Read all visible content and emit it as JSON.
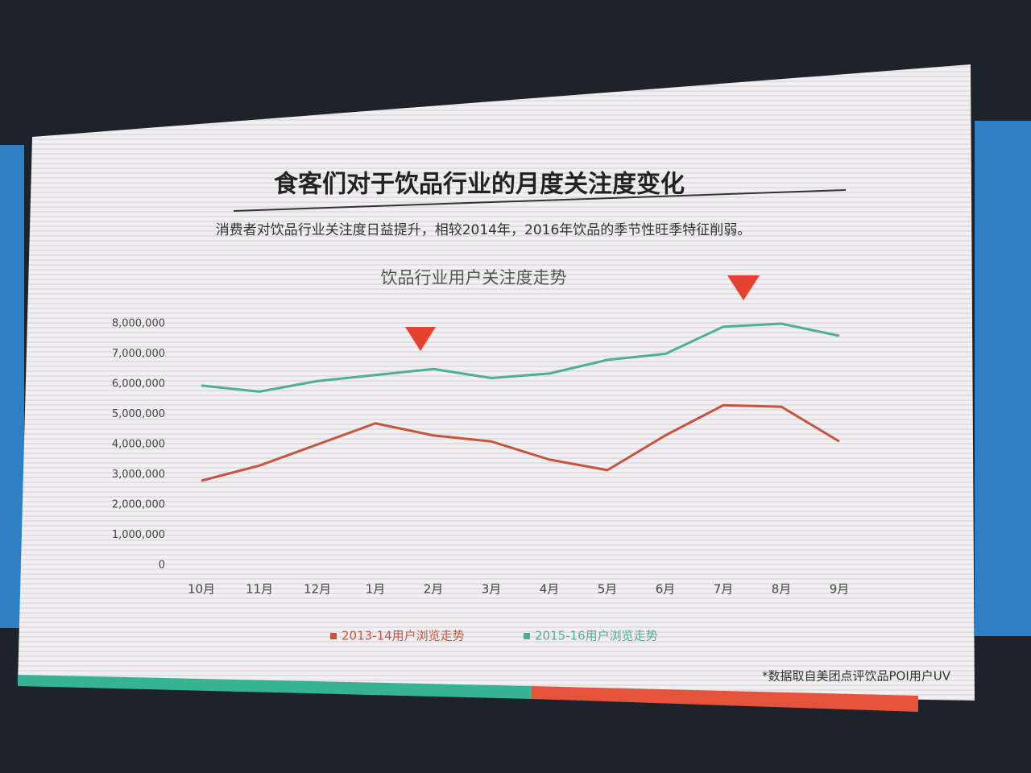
{
  "chart_data": {
    "type": "line",
    "heading": "食客们对于饮品行业的月度关注度变化",
    "subheading": "消费者对饮品行业关注度日益提升，相较2014年，2016年饮品的季节性旺季特征削弱。",
    "title": "饮品行业用户关注度走势",
    "footnote": "*数据取自美团点评饮品POI用户UV",
    "categories": [
      "10月",
      "11月",
      "12月",
      "1月",
      "2月",
      "3月",
      "4月",
      "5月",
      "6月",
      "7月",
      "8月",
      "9月"
    ],
    "series": [
      {
        "name": "2013-14用户浏览走势",
        "color": "#c8543f",
        "values": [
          2800000,
          3300000,
          4000000,
          4700000,
          4300000,
          4100000,
          3500000,
          3150000,
          4300000,
          5300000,
          5250000,
          4100000
        ]
      },
      {
        "name": "2015-16用户浏览走势",
        "color": "#4fae96",
        "values": [
          5950000,
          5750000,
          6100000,
          6300000,
          6500000,
          6200000,
          6350000,
          6800000,
          7000000,
          7900000,
          8000000,
          7600000
        ]
      }
    ],
    "ylim": [
      0,
      8000000
    ],
    "yticks": [
      0,
      {
        "value": 1000000,
        "label": "1,000,000"
      },
      {
        "value": 2000000,
        "label": "2,000,000"
      },
      {
        "value": 3000000,
        "label": "3,000,000"
      },
      {
        "value": 4000000,
        "label": "4,000,000"
      },
      {
        "value": 5000000,
        "label": "5,000,000"
      },
      {
        "value": 6000000,
        "label": "6,000,000"
      },
      {
        "value": 7000000,
        "label": "7,000,000"
      },
      {
        "value": 8000000,
        "label": "8,000,000"
      }
    ],
    "grid": false
  }
}
